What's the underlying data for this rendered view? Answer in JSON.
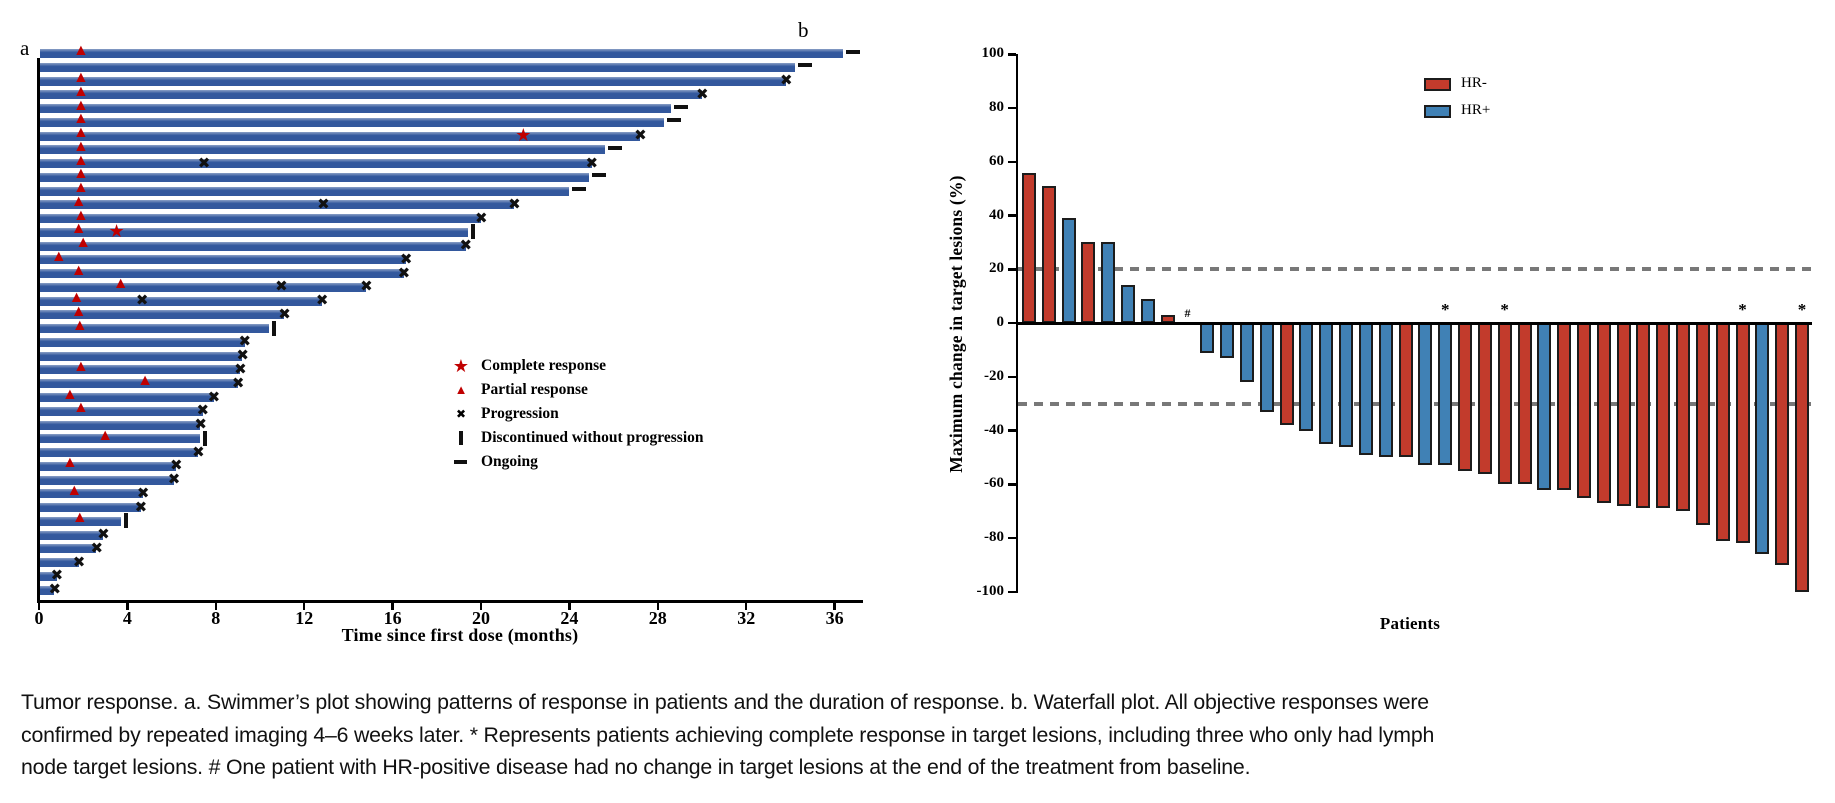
{
  "figure": {
    "panel_a_label": "a",
    "panel_b_label": "b"
  },
  "caption": {
    "lines": [
      "Tumor response. a. Swimmer’s plot showing patterns of response in patients and the duration of response. b. Waterfall plot. All objective responses were",
      "confirmed by repeated imaging 4–6 weeks later. * Represents patients achieving complete response in target lesions, including three who only had lymph",
      "node target lesions. # One patient with HR-positive disease had no change in target lesions at the end of the treatment from baseline."
    ]
  },
  "colors": {
    "swimmer_bar": "#33589d",
    "response_red": "#c00000",
    "hr_neg": "#c23b2c",
    "hr_pos": "#4081b5",
    "bar_border": "#1c1c1c",
    "ref_dash": "#787878"
  },
  "icons": {
    "complete_response": "★",
    "partial_response": "▲",
    "progression": "✖"
  },
  "chart_data": [
    {
      "type": "swimmer",
      "xlabel": "Time since first dose (months)",
      "x_ticks": [
        0,
        4,
        8,
        12,
        16,
        20,
        24,
        28,
        32,
        36
      ],
      "xlim": [
        0,
        37.5
      ],
      "legend": [
        {
          "symbol": "star",
          "label": "Complete response"
        },
        {
          "symbol": "triangle",
          "label": "Partial response"
        },
        {
          "symbol": "x",
          "label": "Progression"
        },
        {
          "symbol": "vbar",
          "label": "Discontinued without progression"
        },
        {
          "symbol": "dash",
          "label": "Ongoing"
        }
      ],
      "patients": [
        {
          "duration": 36.4,
          "end": "ongoing",
          "pr": 1.9,
          "cr": null,
          "mid_x": null
        },
        {
          "duration": 34.2,
          "end": "ongoing",
          "pr": null,
          "cr": null,
          "mid_x": null
        },
        {
          "duration": 33.8,
          "end": "progression",
          "pr": 1.9,
          "cr": null,
          "mid_x": null
        },
        {
          "duration": 30.0,
          "end": "progression",
          "pr": 1.9,
          "cr": null,
          "mid_x": null
        },
        {
          "duration": 28.6,
          "end": "ongoing",
          "pr": 1.9,
          "cr": null,
          "mid_x": null
        },
        {
          "duration": 28.3,
          "end": "ongoing",
          "pr": 1.9,
          "cr": null,
          "mid_x": null
        },
        {
          "duration": 27.2,
          "end": "progression",
          "pr": 1.9,
          "cr": 22.0,
          "mid_x": null
        },
        {
          "duration": 25.6,
          "end": "ongoing",
          "pr": 1.9,
          "cr": null,
          "mid_x": null
        },
        {
          "duration": 25.0,
          "end": "progression",
          "pr": 1.9,
          "cr": null,
          "mid_x": 7.5
        },
        {
          "duration": 24.9,
          "end": "ongoing",
          "pr": 1.9,
          "cr": null,
          "mid_x": null
        },
        {
          "duration": 24.0,
          "end": "ongoing",
          "pr": 1.9,
          "cr": null,
          "mid_x": null
        },
        {
          "duration": 21.5,
          "end": "progression",
          "pr": 1.8,
          "cr": null,
          "mid_x": 12.9
        },
        {
          "duration": 20.0,
          "end": "progression",
          "pr": 1.9,
          "cr": null,
          "mid_x": null
        },
        {
          "duration": 19.4,
          "end": "discontinued",
          "pr": 1.8,
          "cr": 3.6,
          "mid_x": null
        },
        {
          "duration": 19.3,
          "end": "progression",
          "pr": 2.0,
          "cr": null,
          "mid_x": null
        },
        {
          "duration": 16.6,
          "end": "progression",
          "pr": 0.9,
          "cr": null,
          "mid_x": null
        },
        {
          "duration": 16.5,
          "end": "progression",
          "pr": 1.8,
          "cr": null,
          "mid_x": null
        },
        {
          "duration": 14.8,
          "end": "progression",
          "pr": 3.7,
          "cr": null,
          "mid_x": 11.0
        },
        {
          "duration": 12.8,
          "end": "progression",
          "pr": 1.7,
          "cr": null,
          "mid_x": 4.7
        },
        {
          "duration": 11.1,
          "end": "progression",
          "pr": 1.8,
          "cr": null,
          "mid_x": null
        },
        {
          "duration": 10.4,
          "end": "discontinued",
          "pr": 1.85,
          "cr": null,
          "mid_x": null
        },
        {
          "duration": 9.3,
          "end": "progression",
          "pr": null,
          "cr": null,
          "mid_x": null
        },
        {
          "duration": 9.2,
          "end": "progression",
          "pr": null,
          "cr": null,
          "mid_x": null
        },
        {
          "duration": 9.1,
          "end": "progression",
          "pr": 1.9,
          "cr": null,
          "mid_x": null
        },
        {
          "duration": 9.0,
          "end": "progression",
          "pr": 4.8,
          "cr": null,
          "mid_x": null
        },
        {
          "duration": 7.9,
          "end": "progression",
          "pr": 1.4,
          "cr": null,
          "mid_x": null
        },
        {
          "duration": 7.4,
          "end": "progression",
          "pr": 1.9,
          "cr": null,
          "mid_x": null
        },
        {
          "duration": 7.3,
          "end": "progression",
          "pr": null,
          "cr": null,
          "mid_x": null
        },
        {
          "duration": 7.3,
          "end": "discontinued",
          "pr": 3.0,
          "cr": null,
          "mid_x": null
        },
        {
          "duration": 7.2,
          "end": "progression",
          "pr": null,
          "cr": null,
          "mid_x": null
        },
        {
          "duration": 6.2,
          "end": "progression",
          "pr": 1.4,
          "cr": null,
          "mid_x": null
        },
        {
          "duration": 6.1,
          "end": "progression",
          "pr": null,
          "cr": null,
          "mid_x": null
        },
        {
          "duration": 4.7,
          "end": "progression",
          "pr": 1.6,
          "cr": null,
          "mid_x": null
        },
        {
          "duration": 4.6,
          "end": "progression",
          "pr": null,
          "cr": null,
          "mid_x": null
        },
        {
          "duration": 3.7,
          "end": "discontinued",
          "pr": 1.85,
          "cr": null,
          "mid_x": null
        },
        {
          "duration": 2.9,
          "end": "progression",
          "pr": null,
          "cr": null,
          "mid_x": null
        },
        {
          "duration": 2.6,
          "end": "progression",
          "pr": null,
          "cr": null,
          "mid_x": null
        },
        {
          "duration": 1.8,
          "end": "progression",
          "pr": null,
          "cr": null,
          "mid_x": null
        },
        {
          "duration": 0.8,
          "end": "progression",
          "pr": null,
          "cr": null,
          "mid_x": null
        },
        {
          "duration": 0.7,
          "end": "progression",
          "pr": null,
          "cr": null,
          "mid_x": null
        }
      ]
    },
    {
      "type": "waterfall",
      "ylabel": "Maximum change in target lesions (%)",
      "xlabel": "Patients",
      "ylim": [
        -100,
        100
      ],
      "y_ticks": [
        100,
        80,
        60,
        40,
        20,
        0,
        -20,
        -40,
        -60,
        -80,
        -100
      ],
      "ref_lines": [
        20,
        -30
      ],
      "legend": [
        {
          "label": "HR-",
          "group": "hr_neg"
        },
        {
          "label": "HR+",
          "group": "hr_pos"
        }
      ],
      "patients": [
        {
          "value": 56,
          "hr": "HR-",
          "note": null
        },
        {
          "value": 51,
          "hr": "HR-",
          "note": null
        },
        {
          "value": 39,
          "hr": "HR+",
          "note": null
        },
        {
          "value": 30,
          "hr": "HR-",
          "note": null
        },
        {
          "value": 30,
          "hr": "HR+",
          "note": null
        },
        {
          "value": 14,
          "hr": "HR+",
          "note": null
        },
        {
          "value": 9,
          "hr": "HR+",
          "note": null
        },
        {
          "value": 3,
          "hr": "HR-",
          "note": null
        },
        {
          "value": 0,
          "hr": "HR+",
          "note": "#"
        },
        {
          "value": -11,
          "hr": "HR+",
          "note": null
        },
        {
          "value": -13,
          "hr": "HR+",
          "note": null
        },
        {
          "value": -22,
          "hr": "HR+",
          "note": null
        },
        {
          "value": -33,
          "hr": "HR+",
          "note": null
        },
        {
          "value": -38,
          "hr": "HR-",
          "note": null
        },
        {
          "value": -40,
          "hr": "HR+",
          "note": null
        },
        {
          "value": -45,
          "hr": "HR+",
          "note": null
        },
        {
          "value": -46,
          "hr": "HR+",
          "note": null
        },
        {
          "value": -49,
          "hr": "HR+",
          "note": null
        },
        {
          "value": -50,
          "hr": "HR+",
          "note": null
        },
        {
          "value": -50,
          "hr": "HR-",
          "note": null
        },
        {
          "value": -53,
          "hr": "HR+",
          "note": null
        },
        {
          "value": -53,
          "hr": "HR+",
          "note": "*"
        },
        {
          "value": -55,
          "hr": "HR-",
          "note": null
        },
        {
          "value": -56,
          "hr": "HR-",
          "note": null
        },
        {
          "value": -60,
          "hr": "HR-",
          "note": "*"
        },
        {
          "value": -60,
          "hr": "HR-",
          "note": null
        },
        {
          "value": -62,
          "hr": "HR+",
          "note": null
        },
        {
          "value": -62,
          "hr": "HR-",
          "note": null
        },
        {
          "value": -65,
          "hr": "HR-",
          "note": null
        },
        {
          "value": -67,
          "hr": "HR-",
          "note": null
        },
        {
          "value": -68,
          "hr": "HR-",
          "note": null
        },
        {
          "value": -69,
          "hr": "HR-",
          "note": null
        },
        {
          "value": -69,
          "hr": "HR-",
          "note": null
        },
        {
          "value": -70,
          "hr": "HR-",
          "note": null
        },
        {
          "value": -75,
          "hr": "HR-",
          "note": null
        },
        {
          "value": -81,
          "hr": "HR-",
          "note": null
        },
        {
          "value": -82,
          "hr": "HR-",
          "note": "*"
        },
        {
          "value": -86,
          "hr": "HR+",
          "note": null
        },
        {
          "value": -90,
          "hr": "HR-",
          "note": null
        },
        {
          "value": -100,
          "hr": "HR-",
          "note": "*"
        }
      ]
    }
  ]
}
